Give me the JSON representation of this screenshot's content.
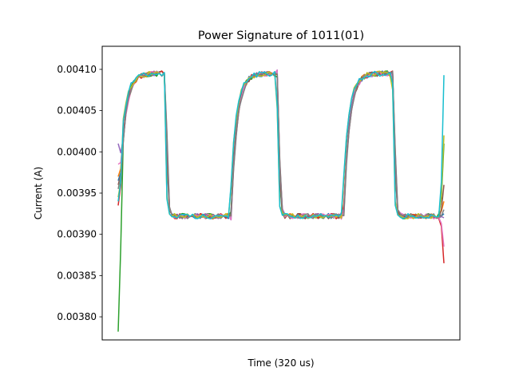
{
  "chart_data": {
    "type": "line",
    "title": "Power Signature of 1011(01)",
    "xlabel": "Time (320 us)",
    "ylabel": "Current (A)",
    "xlim": [
      0,
      1
    ],
    "ylim": [
      0.003772,
      0.004128
    ],
    "x_ticks_visible": false,
    "y_ticks": [
      {
        "value": 0.0038,
        "label": "0.00380"
      },
      {
        "value": 0.00385,
        "label": "0.00385"
      },
      {
        "value": 0.0039,
        "label": "0.00390"
      },
      {
        "value": 0.00395,
        "label": "0.00395"
      },
      {
        "value": 0.004,
        "label": "0.00400"
      },
      {
        "value": 0.00405,
        "label": "0.00405"
      },
      {
        "value": 0.0041,
        "label": "0.00410"
      }
    ],
    "grid": false,
    "legend": "none",
    "pattern": {
      "high_level": 0.004095,
      "low_level": 0.003922,
      "high_segments": [
        [
          0.0,
          0.145
        ],
        [
          0.345,
          0.49
        ],
        [
          0.69,
          0.845
        ]
      ],
      "low_segments": [
        [
          0.145,
          0.345
        ],
        [
          0.49,
          0.69
        ],
        [
          0.845,
          1.0
        ]
      ],
      "rise_points": [
        0.0,
        0.345,
        0.69
      ],
      "fall_points": [
        0.145,
        0.49,
        0.845
      ]
    },
    "series": [
      {
        "color": "#1f77b4",
        "start": 0.003965,
        "end": 0.003925,
        "values": []
      },
      {
        "color": "#ff7f0e",
        "start": 0.00397,
        "end": 0.00394,
        "values": []
      },
      {
        "color": "#2ca02c",
        "start": 0.003782,
        "end": 0.00401,
        "values": []
      },
      {
        "color": "#d62728",
        "start": 0.003935,
        "end": 0.003865,
        "values": []
      },
      {
        "color": "#9467bd",
        "start": 0.00401,
        "end": 0.00392,
        "values": []
      },
      {
        "color": "#8c564b",
        "start": 0.00396,
        "end": 0.00396,
        "values": []
      },
      {
        "color": "#e377c2",
        "start": 0.003985,
        "end": 0.003885,
        "values": []
      },
      {
        "color": "#7f7f7f",
        "start": 0.003955,
        "end": 0.00393,
        "values": []
      },
      {
        "color": "#bcbd22",
        "start": 0.003945,
        "end": 0.00402,
        "values": []
      },
      {
        "color": "#17becf",
        "start": 0.00394,
        "end": 0.004093,
        "values": []
      }
    ]
  }
}
